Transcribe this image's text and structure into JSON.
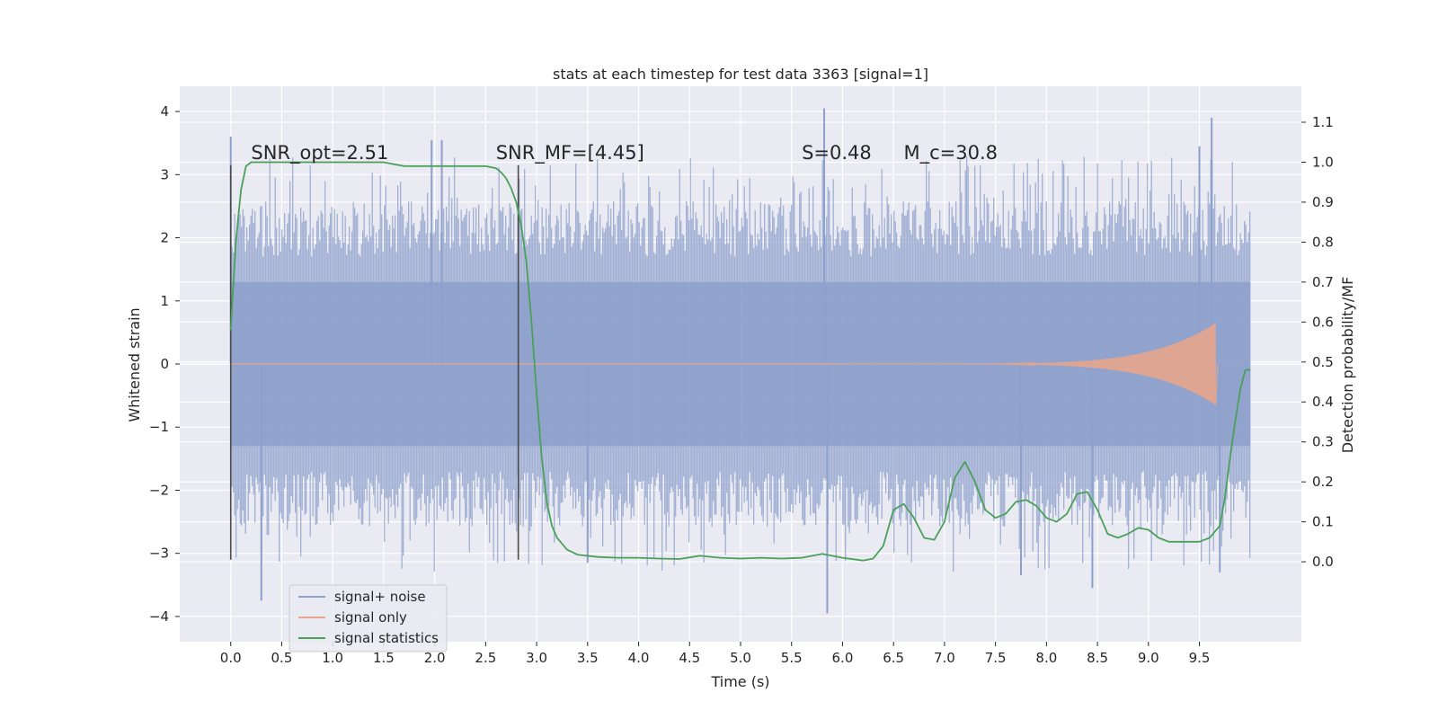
{
  "chart_data": {
    "type": "line",
    "title": "stats at each timestep for test data 3363 [signal=1]",
    "xlabel": "Time (s)",
    "ylabel": "Whitened strain",
    "y2label": "Detection probability/MF",
    "xlim": [
      -0.5,
      10.5
    ],
    "ylim": [
      -4.4,
      4.4
    ],
    "y2lim": [
      -0.2,
      1.19
    ],
    "xticks": [
      0.0,
      0.5,
      1.0,
      1.5,
      2.0,
      2.5,
      3.0,
      3.5,
      4.0,
      4.5,
      5.0,
      5.5,
      6.0,
      6.5,
      7.0,
      7.5,
      8.0,
      8.5,
      9.0,
      9.5
    ],
    "xtick_labels": [
      "0.0",
      "0.5",
      "1.0",
      "1.5",
      "2.0",
      "2.5",
      "3.0",
      "3.5",
      "4.0",
      "4.5",
      "5.0",
      "5.5",
      "6.0",
      "6.5",
      "7.0",
      "7.5",
      "8.0",
      "8.5",
      "9.0",
      "9.5"
    ],
    "yticks": [
      4,
      3,
      2,
      1,
      0,
      -1,
      -2,
      -3,
      -4
    ],
    "ytick_labels": [
      "4",
      "3",
      "2",
      "1",
      "0",
      "−1",
      "−2",
      "−3",
      "−4"
    ],
    "y2ticks": [
      1.1,
      1.0,
      0.9,
      0.8,
      0.7,
      0.6,
      0.5,
      0.4,
      0.3,
      0.2,
      0.1,
      0.0
    ],
    "y2tick_labels": [
      "1.1",
      "1.0",
      "0.9",
      "0.8",
      "0.7",
      "0.6",
      "0.5",
      "0.4",
      "0.3",
      "0.2",
      "0.1",
      "0.0"
    ],
    "grid": true,
    "legend_position": "lower-left",
    "annotations": [
      {
        "text": "SNR_opt=2.51",
        "x": 0.2,
        "y": 3.25
      },
      {
        "text": "SNR_MF=[4.45]",
        "x": 2.6,
        "y": 3.25
      },
      {
        "text": "S=0.48",
        "x": 5.6,
        "y": 3.25
      },
      {
        "text": "M_c=30.8",
        "x": 6.6,
        "y": 3.25
      }
    ],
    "vlines": [
      {
        "x": 0.0,
        "ymin": -3.1,
        "ymax": 3.15
      },
      {
        "x": 2.82,
        "ymin": -3.1,
        "ymax": 3.15
      }
    ],
    "series": [
      {
        "name": "signal+ noise",
        "color": "#8da0cb",
        "kind": "noise",
        "x_range": [
          0.0,
          10.0
        ],
        "core_amplitude": 1.3,
        "typical_peak_range": [
          1.7,
          3.3
        ],
        "max": 4.05,
        "min": -3.95
      },
      {
        "name": "signal only",
        "color": "#e6a58c",
        "kind": "chirp",
        "x_range": [
          6.0,
          9.66
        ],
        "peak_time": 9.66,
        "peak_amplitude": 0.65
      },
      {
        "name": "signal statistics",
        "color": "#4aa05a",
        "axis": "right",
        "x": [
          0.0,
          0.05,
          0.1,
          0.15,
          0.2,
          0.3,
          0.5,
          0.8,
          1.0,
          1.3,
          1.5,
          1.7,
          2.0,
          2.2,
          2.5,
          2.6,
          2.65,
          2.7,
          2.75,
          2.8,
          2.85,
          2.9,
          2.95,
          3.0,
          3.05,
          3.1,
          3.15,
          3.2,
          3.3,
          3.4,
          3.6,
          3.8,
          4.0,
          4.2,
          4.4,
          4.6,
          4.8,
          5.0,
          5.2,
          5.4,
          5.6,
          5.8,
          6.0,
          6.2,
          6.3,
          6.4,
          6.5,
          6.6,
          6.7,
          6.8,
          6.9,
          7.0,
          7.1,
          7.2,
          7.3,
          7.4,
          7.5,
          7.6,
          7.7,
          7.8,
          7.9,
          8.0,
          8.1,
          8.2,
          8.3,
          8.4,
          8.5,
          8.6,
          8.7,
          8.8,
          8.9,
          9.0,
          9.1,
          9.2,
          9.3,
          9.4,
          9.5,
          9.6,
          9.7,
          9.75,
          9.8,
          9.85,
          9.9,
          9.95,
          10.0
        ],
        "values": [
          0.58,
          0.8,
          0.93,
          0.99,
          1.0,
          1.0,
          1.0,
          1.0,
          1.0,
          1.0,
          1.0,
          0.99,
          0.99,
          0.99,
          0.99,
          0.985,
          0.975,
          0.96,
          0.935,
          0.9,
          0.84,
          0.75,
          0.6,
          0.42,
          0.26,
          0.15,
          0.09,
          0.06,
          0.03,
          0.018,
          0.012,
          0.01,
          0.01,
          0.008,
          0.007,
          0.015,
          0.01,
          0.008,
          0.01,
          0.008,
          0.01,
          0.02,
          0.01,
          0.003,
          0.008,
          0.04,
          0.13,
          0.145,
          0.11,
          0.06,
          0.055,
          0.1,
          0.21,
          0.25,
          0.2,
          0.13,
          0.11,
          0.12,
          0.15,
          0.155,
          0.14,
          0.11,
          0.1,
          0.12,
          0.17,
          0.175,
          0.13,
          0.07,
          0.06,
          0.07,
          0.085,
          0.08,
          0.06,
          0.05,
          0.05,
          0.05,
          0.05,
          0.06,
          0.09,
          0.16,
          0.26,
          0.35,
          0.43,
          0.48,
          0.48
        ]
      }
    ]
  }
}
